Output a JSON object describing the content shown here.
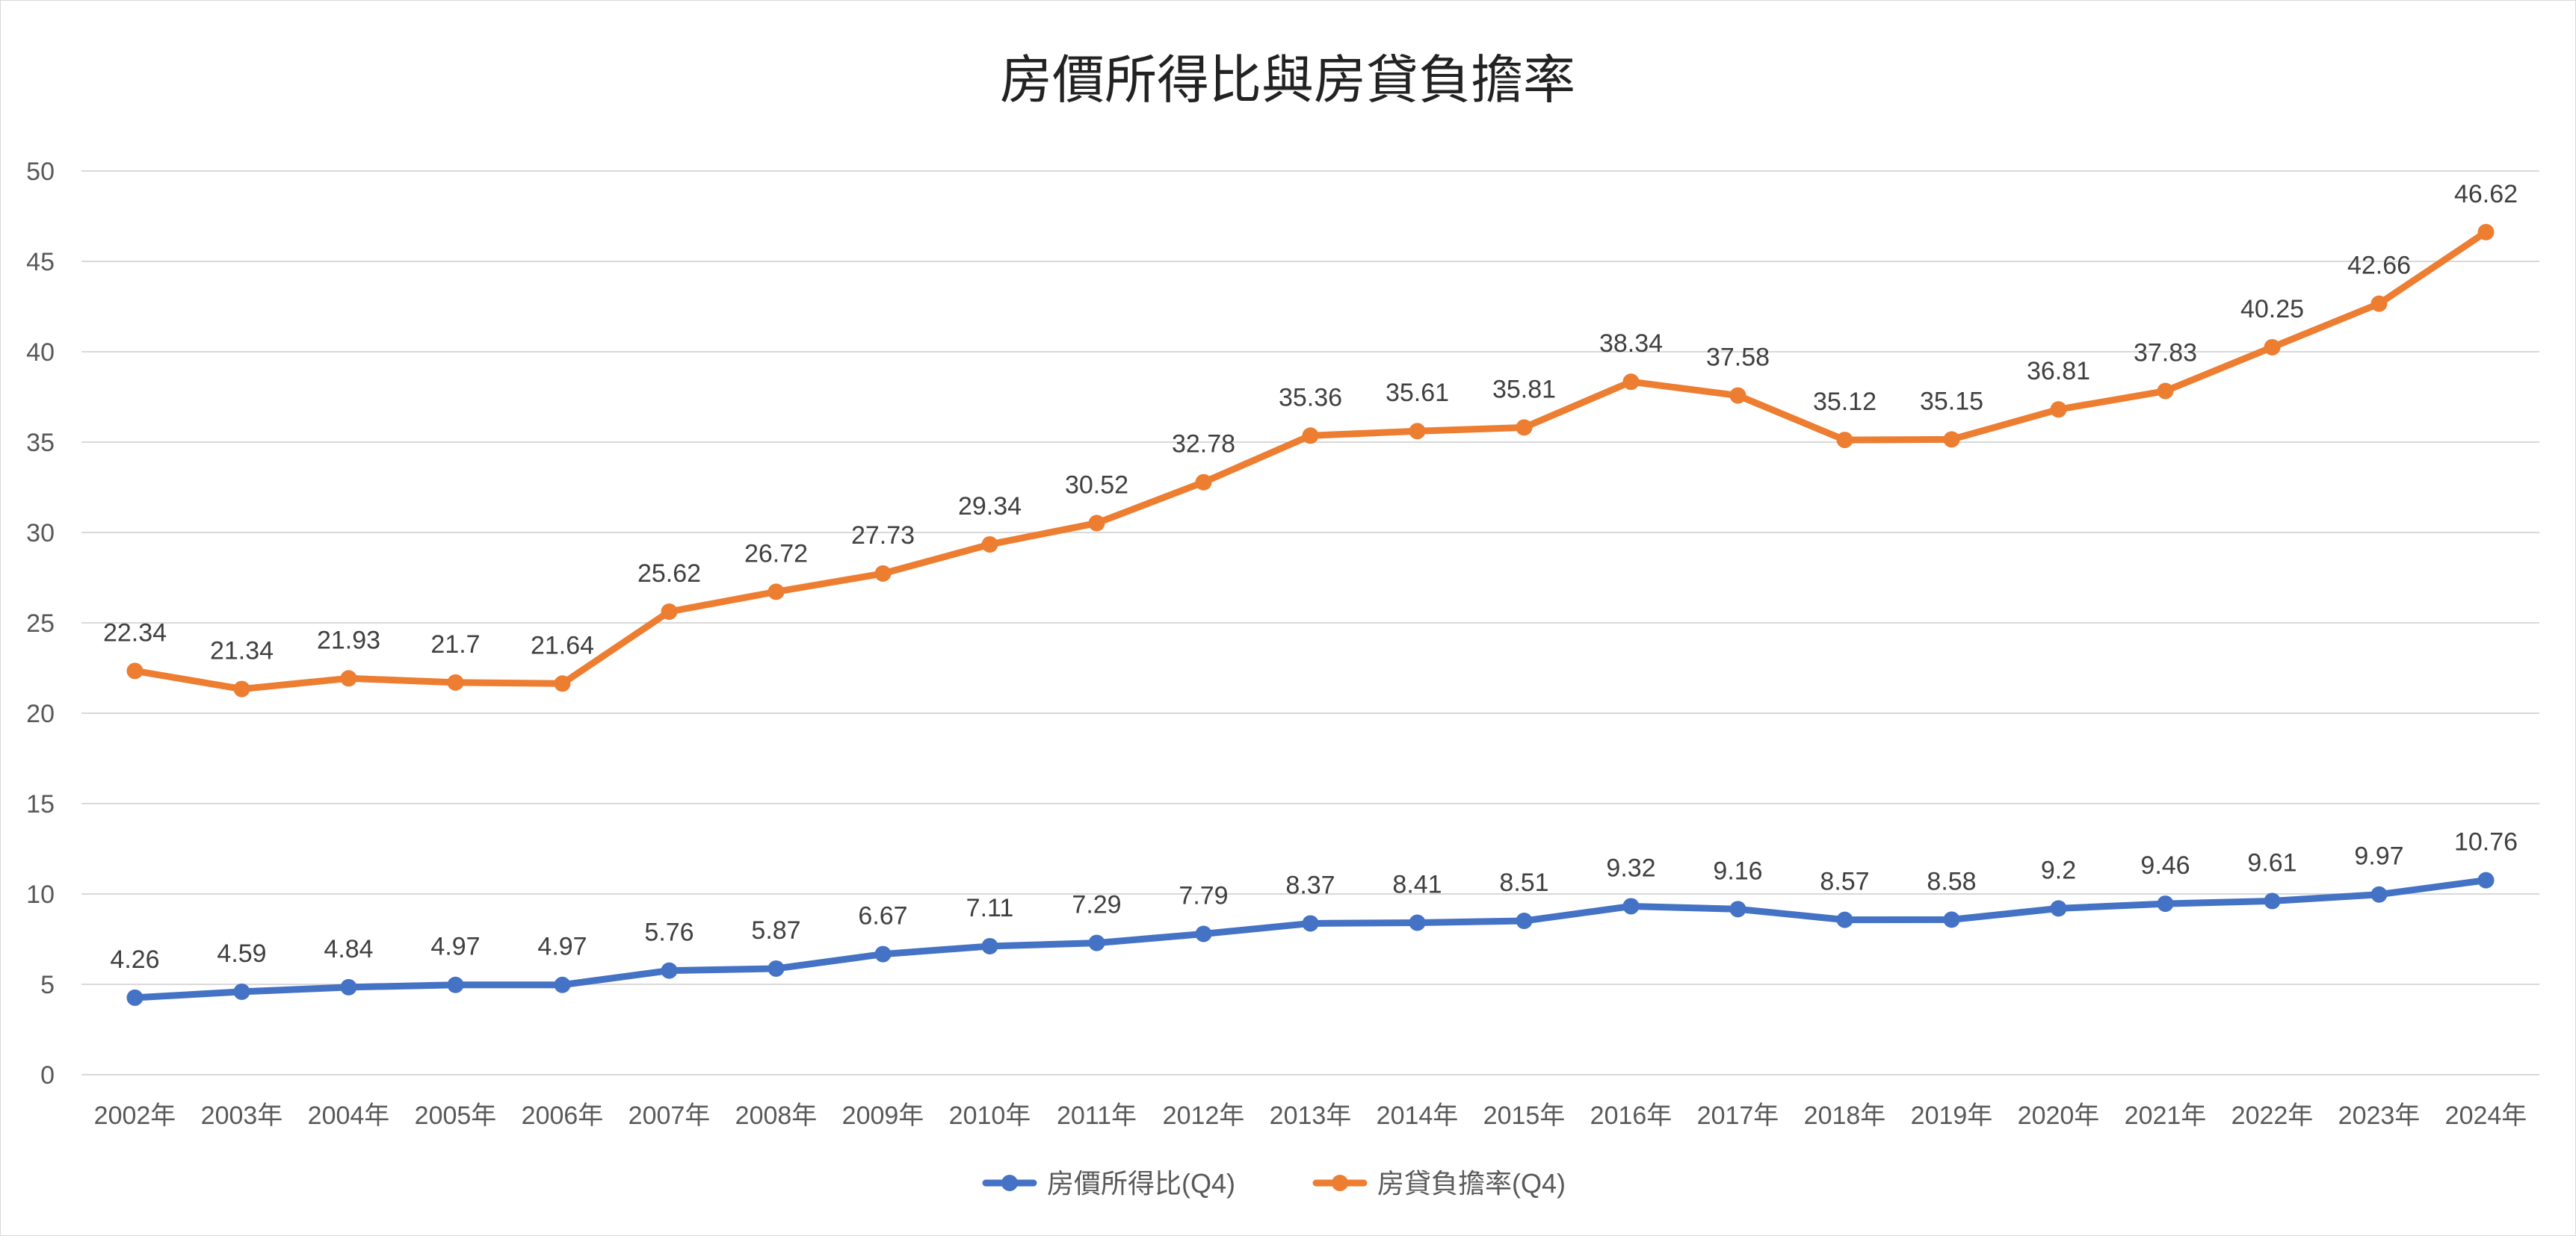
{
  "chart_data": {
    "type": "line",
    "title": "房價所得比與房貸負擔率",
    "xlabel": "",
    "ylabel": "",
    "ylim": [
      0,
      50
    ],
    "yticks": [
      0,
      5,
      10,
      15,
      20,
      25,
      30,
      35,
      40,
      45,
      50
    ],
    "grid": true,
    "legend_position": "bottom",
    "categories": [
      "2002年",
      "2003年",
      "2004年",
      "2005年",
      "2006年",
      "2007年",
      "2008年",
      "2009年",
      "2010年",
      "2011年",
      "2012年",
      "2013年",
      "2014年",
      "2015年",
      "2016年",
      "2017年",
      "2018年",
      "2019年",
      "2020年",
      "2021年",
      "2022年",
      "2023年",
      "2024年"
    ],
    "series": [
      {
        "name": "房價所得比(Q4)",
        "color": "#4472C4",
        "values": [
          4.26,
          4.59,
          4.84,
          4.97,
          4.97,
          5.76,
          5.87,
          6.67,
          7.11,
          7.29,
          7.79,
          8.37,
          8.41,
          8.51,
          9.32,
          9.16,
          8.57,
          8.58,
          9.2,
          9.46,
          9.61,
          9.97,
          10.76
        ],
        "labels": [
          "4.26",
          "4.59",
          "4.84",
          "4.97",
          "4.97",
          "5.76",
          "5.87",
          "6.67",
          "7.11",
          "7.29",
          "7.79",
          "8.37",
          "8.41",
          "8.51",
          "9.32",
          "9.16",
          "8.57",
          "8.58",
          "9.2",
          "9.46",
          "9.61",
          "9.97",
          "10.76"
        ]
      },
      {
        "name": "房貸負擔率(Q4)",
        "color": "#ED7D31",
        "values": [
          22.34,
          21.34,
          21.93,
          21.7,
          21.64,
          25.62,
          26.72,
          27.73,
          29.34,
          30.52,
          32.78,
          35.36,
          35.61,
          35.81,
          38.34,
          37.58,
          35.12,
          35.15,
          36.81,
          37.83,
          40.25,
          42.66,
          46.62
        ],
        "labels": [
          "22.34",
          "21.34",
          "21.93",
          "21.7",
          "21.64",
          "25.62",
          "26.72",
          "27.73",
          "29.34",
          "30.52",
          "32.78",
          "35.36",
          "35.61",
          "35.81",
          "38.34",
          "37.58",
          "35.12",
          "35.15",
          "36.81",
          "37.83",
          "40.25",
          "42.66",
          "46.62"
        ]
      }
    ]
  }
}
